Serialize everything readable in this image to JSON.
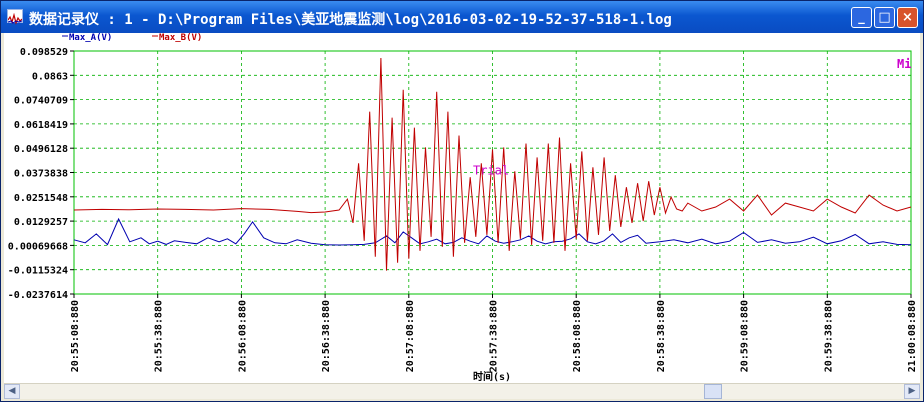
{
  "window": {
    "title": "数据记录仪 : 1 - D:\\Program Files\\美亚地震监测\\log\\2016-03-02-19-52-37-518-1.log",
    "min_symbol": "_",
    "max_symbol": "□",
    "close_symbol": "×"
  },
  "chart_data": {
    "type": "line",
    "title": "",
    "xlabel": "时间(s)",
    "ylabel": "",
    "x_ticks": [
      "20:55:08:880",
      "20:55:38:880",
      "20:56:08:880",
      "20:56:38:880",
      "20:57:08:880",
      "20:57:38:880",
      "20:58:08:880",
      "20:58:38:880",
      "20:59:08:880",
      "20:59:38:880",
      "21:00:08:880"
    ],
    "y_ticks": [
      "0.098529",
      "0.0863",
      "0.0740709",
      "0.0618419",
      "0.0496128",
      "0.0373838",
      "0.0251548",
      "0.0129257",
      "0.00069668",
      "-0.0115324",
      "-0.0237614"
    ],
    "ylim": [
      -0.0237614,
      0.098529
    ],
    "x_start_seconds": 0,
    "x_end_seconds": 300,
    "grid": true,
    "legend_position": "top-left",
    "series": [
      {
        "name": "Max_A(V)",
        "color": "#0000b0",
        "x": [
          0,
          4,
          8,
          12,
          16,
          20,
          24,
          27,
          30,
          33,
          36,
          40,
          44,
          48,
          52,
          55,
          58,
          61,
          64,
          68,
          72,
          76,
          80,
          85,
          90,
          95,
          100,
          104,
          108,
          112,
          115,
          118,
          121,
          124,
          127,
          130,
          133,
          136,
          139,
          142,
          145,
          148,
          151,
          154,
          157,
          160,
          163,
          166,
          169,
          172,
          175,
          178,
          181,
          184,
          187,
          190,
          193,
          196,
          199,
          202,
          205,
          210,
          215,
          220,
          225,
          230,
          235,
          240,
          245,
          250,
          255,
          260,
          265,
          270,
          275,
          280,
          285,
          290,
          295,
          300
        ],
        "values": [
          0.0035,
          0.002,
          0.0065,
          0.0011,
          0.014,
          0.0025,
          0.0045,
          0.0015,
          0.0028,
          0.0012,
          0.003,
          0.0022,
          0.0015,
          0.0045,
          0.0025,
          0.004,
          0.0015,
          0.0065,
          0.0125,
          0.0045,
          0.002,
          0.0015,
          0.0035,
          0.0018,
          0.001,
          0.0009,
          0.001,
          0.0012,
          0.002,
          0.0055,
          0.002,
          0.0075,
          0.0045,
          0.0015,
          0.0025,
          0.0038,
          0.0015,
          0.0022,
          0.0045,
          0.0028,
          0.0015,
          0.0055,
          0.0028,
          0.0018,
          0.0025,
          0.0035,
          0.0055,
          0.0028,
          0.0015,
          0.0025,
          0.0028,
          0.004,
          0.0065,
          0.0025,
          0.0015,
          0.003,
          0.0065,
          0.0022,
          0.0045,
          0.0058,
          0.0018,
          0.0025,
          0.0035,
          0.002,
          0.0038,
          0.0015,
          0.0028,
          0.0072,
          0.0022,
          0.0035,
          0.0018,
          0.0025,
          0.0048,
          0.0015,
          0.003,
          0.0062,
          0.0015,
          0.0025,
          0.0012,
          0.001
        ]
      },
      {
        "name": "Max_B(V)",
        "color": "#c00000",
        "x": [
          0,
          10,
          20,
          30,
          40,
          50,
          60,
          70,
          80,
          85,
          90,
          95,
          98,
          100,
          102,
          104,
          106,
          108,
          110,
          112,
          114,
          116,
          118,
          120,
          122,
          124,
          126,
          128,
          130,
          132,
          134,
          136,
          138,
          140,
          142,
          144,
          146,
          148,
          150,
          152,
          154,
          156,
          158,
          160,
          162,
          164,
          166,
          168,
          170,
          172,
          174,
          176,
          178,
          180,
          182,
          184,
          186,
          188,
          190,
          192,
          194,
          196,
          198,
          200,
          202,
          204,
          206,
          208,
          210,
          212,
          214,
          216,
          218,
          220,
          225,
          230,
          235,
          240,
          245,
          250,
          255,
          260,
          265,
          270,
          275,
          280,
          285,
          290,
          295,
          300
        ],
        "values": [
          0.0185,
          0.0188,
          0.0186,
          0.019,
          0.0188,
          0.0185,
          0.0192,
          0.0188,
          0.0178,
          0.0172,
          0.0175,
          0.0185,
          0.024,
          0.012,
          0.042,
          0.003,
          0.068,
          -0.005,
          0.095,
          -0.012,
          0.065,
          -0.008,
          0.079,
          -0.006,
          0.06,
          -0.002,
          0.05,
          0.005,
          0.078,
          0.0,
          0.068,
          -0.005,
          0.056,
          0.002,
          0.035,
          0.005,
          0.042,
          0.006,
          0.049,
          0.002,
          0.05,
          -0.002,
          0.038,
          0.004,
          0.052,
          0.001,
          0.045,
          0.003,
          0.052,
          0.002,
          0.055,
          -0.002,
          0.042,
          0.004,
          0.048,
          0.003,
          0.04,
          0.006,
          0.045,
          0.008,
          0.036,
          0.01,
          0.03,
          0.012,
          0.032,
          0.013,
          0.033,
          0.016,
          0.03,
          0.017,
          0.025,
          0.019,
          0.018,
          0.022,
          0.018,
          0.02,
          0.024,
          0.018,
          0.026,
          0.016,
          0.022,
          0.02,
          0.018,
          0.024,
          0.02,
          0.017,
          0.026,
          0.021,
          0.018,
          0.02
        ]
      }
    ],
    "annotations": [
      {
        "text": "Trial",
        "color": "#cc00cc",
        "x": 143,
        "y": 0.0363
      }
    ],
    "corner_label": "Mi"
  }
}
